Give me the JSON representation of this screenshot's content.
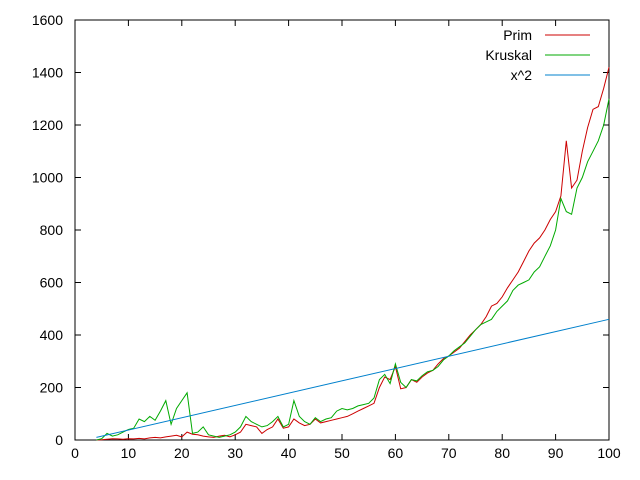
{
  "chart_data": {
    "type": "line",
    "title": "",
    "xlabel": "",
    "ylabel": "",
    "xlim": [
      0,
      100
    ],
    "ylim": [
      0,
      1600
    ],
    "grid": false,
    "legend_position": "top-right",
    "x_ticks": [
      0,
      10,
      20,
      30,
      40,
      50,
      60,
      70,
      80,
      90,
      100
    ],
    "y_ticks": [
      0,
      200,
      400,
      600,
      800,
      1000,
      1200,
      1400,
      1600
    ],
    "series": [
      {
        "name": "Prim",
        "color": "#cc0000",
        "x": [
          4,
          5,
          6,
          7,
          8,
          9,
          10,
          11,
          12,
          13,
          14,
          15,
          16,
          17,
          18,
          19,
          20,
          21,
          22,
          23,
          24,
          25,
          26,
          27,
          28,
          29,
          30,
          31,
          32,
          33,
          34,
          35,
          36,
          37,
          38,
          39,
          40,
          41,
          42,
          43,
          44,
          45,
          46,
          47,
          48,
          49,
          50,
          51,
          52,
          53,
          54,
          55,
          56,
          57,
          58,
          59,
          60,
          61,
          62,
          63,
          64,
          65,
          66,
          67,
          68,
          69,
          70,
          71,
          72,
          73,
          74,
          75,
          76,
          77,
          78,
          79,
          80,
          81,
          82,
          83,
          84,
          85,
          86,
          87,
          88,
          89,
          90,
          91,
          92,
          93,
          94,
          95,
          96,
          97,
          98,
          99,
          100
        ],
        "values": [
          0,
          1,
          3,
          5,
          4,
          3,
          5,
          4,
          6,
          4,
          8,
          10,
          8,
          12,
          15,
          18,
          12,
          30,
          22,
          20,
          15,
          12,
          10,
          15,
          18,
          12,
          20,
          30,
          60,
          55,
          50,
          25,
          40,
          50,
          80,
          45,
          50,
          80,
          65,
          55,
          60,
          80,
          65,
          70,
          75,
          80,
          85,
          90,
          100,
          110,
          120,
          130,
          140,
          200,
          240,
          230,
          280,
          195,
          200,
          230,
          220,
          240,
          255,
          265,
          290,
          310,
          320,
          335,
          350,
          375,
          400,
          420,
          440,
          470,
          510,
          520,
          545,
          580,
          610,
          640,
          680,
          720,
          750,
          770,
          800,
          840,
          870,
          930,
          1140,
          960,
          990,
          1100,
          1190,
          1260,
          1270,
          1340,
          1420
        ]
      },
      {
        "name": "Kruskal",
        "color": "#00aa00",
        "x": [
          4,
          5,
          6,
          7,
          8,
          9,
          10,
          11,
          12,
          13,
          14,
          15,
          16,
          17,
          18,
          19,
          20,
          21,
          22,
          23,
          24,
          25,
          26,
          27,
          28,
          29,
          30,
          31,
          32,
          33,
          34,
          35,
          36,
          37,
          38,
          39,
          40,
          41,
          42,
          43,
          44,
          45,
          46,
          47,
          48,
          49,
          50,
          51,
          52,
          53,
          54,
          55,
          56,
          57,
          58,
          59,
          60,
          61,
          62,
          63,
          64,
          65,
          66,
          67,
          68,
          69,
          70,
          71,
          72,
          73,
          74,
          75,
          76,
          77,
          78,
          79,
          80,
          81,
          82,
          83,
          84,
          85,
          86,
          87,
          88,
          89,
          90,
          91,
          92,
          93,
          94,
          95,
          96,
          97,
          98,
          99,
          100
        ],
        "values": [
          0,
          5,
          25,
          15,
          20,
          30,
          40,
          45,
          80,
          70,
          90,
          75,
          110,
          150,
          60,
          120,
          150,
          180,
          25,
          30,
          50,
          20,
          15,
          10,
          15,
          20,
          30,
          50,
          90,
          70,
          60,
          50,
          55,
          70,
          90,
          50,
          60,
          150,
          90,
          70,
          60,
          85,
          70,
          80,
          85,
          110,
          120,
          115,
          120,
          130,
          135,
          140,
          160,
          230,
          250,
          215,
          290,
          220,
          200,
          230,
          225,
          245,
          260,
          265,
          280,
          305,
          320,
          340,
          355,
          370,
          395,
          420,
          440,
          450,
          460,
          490,
          510,
          530,
          570,
          590,
          600,
          610,
          640,
          660,
          700,
          740,
          800,
          920,
          870,
          860,
          960,
          1000,
          1060,
          1100,
          1140,
          1200,
          1300
        ]
      },
      {
        "name": "x^2",
        "color": "#0080cc",
        "x": [
          4,
          100
        ],
        "values": [
          10,
          460
        ]
      }
    ]
  }
}
